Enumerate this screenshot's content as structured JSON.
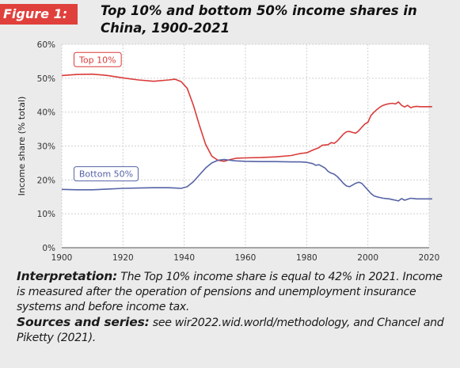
{
  "figure_label": "Figure 1:",
  "title": "Top 10% and bottom 50% income shares in China, 1900-2021",
  "interpretation_label": "Interpretation:",
  "interpretation_text": " The Top 10% income share is equal to 42% in 2021. Income is measured after the operation of pensions and unemployment insurance systems and before income tax.",
  "sources_label": "Sources and series:",
  "sources_text": " see wir2022.wid.world/methodology, and Chancel and Piketty (2021).",
  "colors": {
    "top10": "#d93b39",
    "bottom50": "#5663a6",
    "badge": "#e0403c",
    "background": "#ebebeb"
  },
  "chart_data": {
    "type": "line",
    "title": "Top 10% and bottom 50% income shares in China, 1900-2021",
    "xlabel": "",
    "ylabel": "Income share (% total)",
    "xlim": [
      1900,
      2021
    ],
    "ylim": [
      0,
      60
    ],
    "x_ticks": [
      "1900",
      "1920",
      "1940",
      "1960",
      "1980",
      "2000",
      "2020"
    ],
    "y_ticks": [
      "0%",
      "10%",
      "20%",
      "30%",
      "40%",
      "50%",
      "60%"
    ],
    "grid": true,
    "series": [
      {
        "name": "Top 10%",
        "color": "#d93b39",
        "points": [
          [
            1900,
            50.8
          ],
          [
            1905,
            51.1
          ],
          [
            1910,
            51.2
          ],
          [
            1915,
            50.8
          ],
          [
            1920,
            50.1
          ],
          [
            1925,
            49.5
          ],
          [
            1930,
            49.1
          ],
          [
            1935,
            49.5
          ],
          [
            1937,
            49.7
          ],
          [
            1939,
            49.0
          ],
          [
            1941,
            47.0
          ],
          [
            1943,
            42.0
          ],
          [
            1945,
            36.0
          ],
          [
            1947,
            30.5
          ],
          [
            1949,
            27.0
          ],
          [
            1951,
            25.8
          ],
          [
            1953,
            25.5
          ],
          [
            1955,
            26.0
          ],
          [
            1957,
            26.4
          ],
          [
            1960,
            26.5
          ],
          [
            1965,
            26.6
          ],
          [
            1970,
            26.8
          ],
          [
            1975,
            27.2
          ],
          [
            1978,
            27.8
          ],
          [
            1980,
            28.0
          ],
          [
            1982,
            28.8
          ],
          [
            1984,
            29.5
          ],
          [
            1985,
            30.2
          ],
          [
            1986,
            30.3
          ],
          [
            1987,
            30.4
          ],
          [
            1988,
            31.0
          ],
          [
            1989,
            30.8
          ],
          [
            1990,
            31.5
          ],
          [
            1991,
            32.5
          ],
          [
            1992,
            33.5
          ],
          [
            1993,
            34.2
          ],
          [
            1994,
            34.3
          ],
          [
            1995,
            34.0
          ],
          [
            1996,
            33.8
          ],
          [
            1997,
            34.5
          ],
          [
            1998,
            35.5
          ],
          [
            1999,
            36.5
          ],
          [
            2000,
            37.0
          ],
          [
            2001,
            39.0
          ],
          [
            2002,
            40.0
          ],
          [
            2003,
            40.8
          ],
          [
            2004,
            41.5
          ],
          [
            2005,
            42.0
          ],
          [
            2006,
            42.3
          ],
          [
            2007,
            42.5
          ],
          [
            2008,
            42.6
          ],
          [
            2009,
            42.4
          ],
          [
            2010,
            43.0
          ],
          [
            2011,
            42.0
          ],
          [
            2012,
            41.5
          ],
          [
            2013,
            42.0
          ],
          [
            2014,
            41.3
          ],
          [
            2015,
            41.6
          ],
          [
            2016,
            41.7
          ],
          [
            2017,
            41.6
          ],
          [
            2018,
            41.6
          ],
          [
            2019,
            41.6
          ],
          [
            2020,
            41.6
          ],
          [
            2021,
            41.6
          ]
        ]
      },
      {
        "name": "Bottom 50%",
        "color": "#5663a6",
        "points": [
          [
            1900,
            17.2
          ],
          [
            1905,
            17.1
          ],
          [
            1910,
            17.1
          ],
          [
            1915,
            17.3
          ],
          [
            1920,
            17.5
          ],
          [
            1925,
            17.6
          ],
          [
            1930,
            17.7
          ],
          [
            1935,
            17.7
          ],
          [
            1937,
            17.6
          ],
          [
            1939,
            17.5
          ],
          [
            1941,
            18.0
          ],
          [
            1943,
            19.5
          ],
          [
            1945,
            21.5
          ],
          [
            1947,
            23.5
          ],
          [
            1949,
            25.0
          ],
          [
            1951,
            25.8
          ],
          [
            1953,
            26.0
          ],
          [
            1955,
            25.8
          ],
          [
            1957,
            25.6
          ],
          [
            1960,
            25.5
          ],
          [
            1965,
            25.4
          ],
          [
            1970,
            25.4
          ],
          [
            1975,
            25.3
          ],
          [
            1978,
            25.3
          ],
          [
            1980,
            25.2
          ],
          [
            1982,
            24.8
          ],
          [
            1983,
            24.3
          ],
          [
            1984,
            24.5
          ],
          [
            1985,
            24.0
          ],
          [
            1986,
            23.5
          ],
          [
            1987,
            22.5
          ],
          [
            1988,
            22.0
          ],
          [
            1989,
            21.7
          ],
          [
            1990,
            21.0
          ],
          [
            1991,
            20.0
          ],
          [
            1992,
            19.0
          ],
          [
            1993,
            18.2
          ],
          [
            1994,
            18.0
          ],
          [
            1995,
            18.5
          ],
          [
            1996,
            19.0
          ],
          [
            1997,
            19.3
          ],
          [
            1998,
            19.0
          ],
          [
            1999,
            18.0
          ],
          [
            2000,
            17.0
          ],
          [
            2001,
            16.0
          ],
          [
            2002,
            15.3
          ],
          [
            2003,
            15.0
          ],
          [
            2004,
            14.8
          ],
          [
            2005,
            14.6
          ],
          [
            2006,
            14.5
          ],
          [
            2007,
            14.4
          ],
          [
            2008,
            14.2
          ],
          [
            2009,
            14.0
          ],
          [
            2010,
            13.8
          ],
          [
            2011,
            14.5
          ],
          [
            2012,
            14.0
          ],
          [
            2013,
            14.3
          ],
          [
            2014,
            14.6
          ],
          [
            2015,
            14.5
          ],
          [
            2016,
            14.4
          ],
          [
            2017,
            14.4
          ],
          [
            2018,
            14.4
          ],
          [
            2019,
            14.4
          ],
          [
            2020,
            14.4
          ],
          [
            2021,
            14.4
          ]
        ]
      }
    ],
    "annotations": [
      {
        "text": "Top 10%",
        "x": 1904,
        "y": 55.5,
        "series": "Top 10%"
      },
      {
        "text": "Bottom 50%",
        "x": 1904,
        "y": 21.8,
        "series": "Bottom 50%"
      }
    ]
  }
}
